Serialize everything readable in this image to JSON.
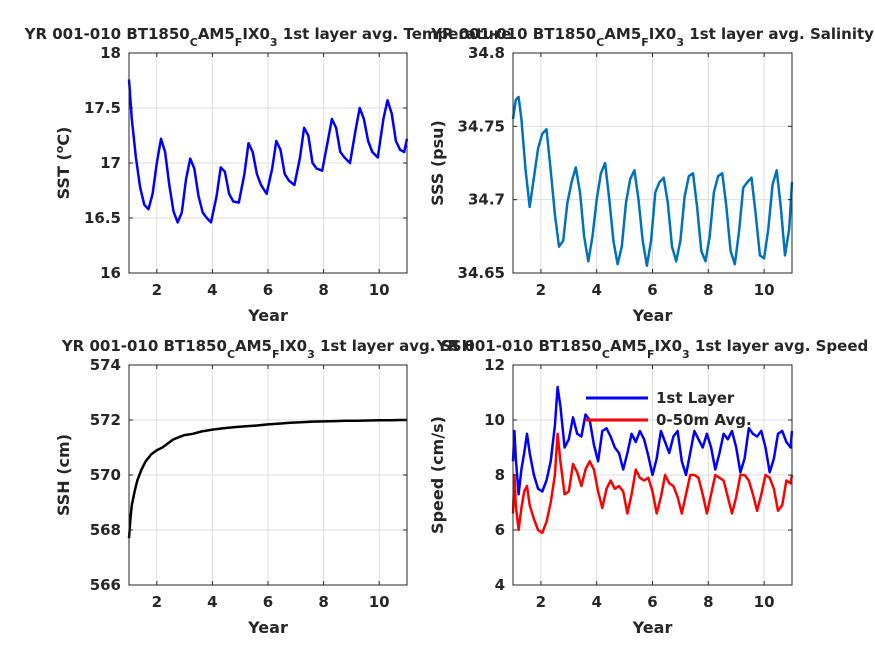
{
  "chart_data": [
    {
      "type": "line",
      "title": "YR 001-010 BT1850_CAM5_FIX0_3 1st layer avg. Temperature",
      "title_parts": {
        "a": "YR 001-010 BT1850",
        "s1": "C",
        "b": "AM5",
        "s2": "F",
        "c": "IX0",
        "s3": "3",
        "d": " 1st layer avg. Temperature"
      },
      "xlabel": "Year",
      "ylabel": "SST (",
      "ylabel_sup": "o",
      "ylabel_end": "C)",
      "xlim": [
        1,
        11
      ],
      "ylim": [
        16,
        18
      ],
      "xticks": [
        2,
        4,
        6,
        8,
        10
      ],
      "yticks": [
        16,
        16.5,
        17,
        17.5,
        18
      ],
      "ytick_labels": [
        "16",
        "16.5",
        "17",
        "17.5",
        "18"
      ],
      "grid": true,
      "series": [
        {
          "color": "#0000ff",
          "x": [
            1.0,
            1.1,
            1.25,
            1.4,
            1.55,
            1.7,
            1.85,
            2.0,
            2.15,
            2.3,
            2.45,
            2.6,
            2.75,
            2.9,
            3.05,
            3.2,
            3.35,
            3.5,
            3.65,
            3.8,
            3.95,
            4.15,
            4.3,
            4.45,
            4.6,
            4.75,
            4.95,
            5.15,
            5.3,
            5.45,
            5.6,
            5.75,
            5.95,
            6.15,
            6.3,
            6.45,
            6.6,
            6.75,
            6.95,
            7.15,
            7.3,
            7.45,
            7.6,
            7.75,
            7.95,
            8.15,
            8.3,
            8.45,
            8.6,
            8.75,
            8.95,
            9.15,
            9.3,
            9.45,
            9.6,
            9.75,
            9.95,
            10.15,
            10.3,
            10.45,
            10.6,
            10.75,
            10.9,
            11.0
          ],
          "y": [
            17.76,
            17.4,
            17.05,
            16.78,
            16.62,
            16.58,
            16.72,
            17.0,
            17.22,
            17.1,
            16.8,
            16.56,
            16.46,
            16.55,
            16.85,
            17.04,
            16.95,
            16.7,
            16.55,
            16.5,
            16.46,
            16.7,
            16.96,
            16.92,
            16.72,
            16.65,
            16.64,
            16.9,
            17.18,
            17.1,
            16.9,
            16.8,
            16.72,
            16.95,
            17.2,
            17.12,
            16.9,
            16.84,
            16.8,
            17.05,
            17.32,
            17.25,
            17.0,
            16.95,
            16.93,
            17.2,
            17.4,
            17.32,
            17.1,
            17.05,
            17.0,
            17.3,
            17.5,
            17.4,
            17.2,
            17.1,
            17.05,
            17.4,
            17.57,
            17.45,
            17.2,
            17.12,
            17.1,
            17.22
          ]
        }
      ]
    },
    {
      "type": "line",
      "title": "YR 001-010 BT1850_CAM5_FIX0_3 1st layer avg. Salinity",
      "title_parts": {
        "a": "YR 001-010 BT1850",
        "s1": "C",
        "b": "AM5",
        "s2": "F",
        "c": "IX0",
        "s3": "3",
        "d": " 1st layer avg. Salinity"
      },
      "xlabel": "Year",
      "ylabel": "SSS (psu)",
      "xlim": [
        1,
        11
      ],
      "ylim": [
        34.65,
        34.8
      ],
      "xticks": [
        2,
        4,
        6,
        8,
        10
      ],
      "yticks": [
        34.65,
        34.7,
        34.75,
        34.8
      ],
      "ytick_labels": [
        "34.65",
        "34.7",
        "34.75",
        "34.8"
      ],
      "grid": true,
      "series": [
        {
          "color": "#0072bd",
          "x": [
            1.0,
            1.1,
            1.2,
            1.3,
            1.45,
            1.6,
            1.75,
            1.9,
            2.05,
            2.2,
            2.35,
            2.5,
            2.65,
            2.8,
            2.95,
            3.1,
            3.25,
            3.4,
            3.55,
            3.7,
            3.85,
            4.0,
            4.15,
            4.3,
            4.45,
            4.6,
            4.75,
            4.9,
            5.05,
            5.2,
            5.35,
            5.5,
            5.65,
            5.8,
            5.95,
            6.1,
            6.25,
            6.4,
            6.55,
            6.7,
            6.85,
            7.0,
            7.15,
            7.3,
            7.45,
            7.6,
            7.75,
            7.9,
            8.05,
            8.2,
            8.35,
            8.5,
            8.65,
            8.8,
            8.95,
            9.1,
            9.25,
            9.4,
            9.55,
            9.7,
            9.85,
            10.0,
            10.15,
            10.3,
            10.45,
            10.6,
            10.75,
            10.9,
            11.0
          ],
          "y": [
            34.755,
            34.768,
            34.77,
            34.755,
            34.72,
            34.695,
            34.715,
            34.735,
            34.745,
            34.748,
            34.72,
            34.69,
            34.668,
            34.672,
            34.698,
            34.712,
            34.722,
            34.705,
            34.675,
            34.658,
            34.675,
            34.7,
            34.718,
            34.725,
            34.7,
            34.672,
            34.656,
            34.668,
            34.698,
            34.714,
            34.72,
            34.7,
            34.672,
            34.655,
            34.672,
            34.705,
            34.712,
            34.715,
            34.698,
            34.668,
            34.658,
            34.672,
            34.702,
            34.716,
            34.718,
            34.695,
            34.665,
            34.658,
            34.675,
            34.705,
            34.716,
            34.718,
            34.695,
            34.665,
            34.656,
            34.678,
            34.708,
            34.712,
            34.715,
            34.69,
            34.662,
            34.66,
            34.68,
            34.71,
            34.72,
            34.695,
            34.662,
            34.68,
            34.712
          ]
        }
      ]
    },
    {
      "type": "line",
      "title": "YR 001-010 BT1850_CAM5_FIX0_3 1st layer avg. SSH",
      "title_parts": {
        "a": "YR 001-010 BT1850",
        "s1": "C",
        "b": "AM5",
        "s2": "F",
        "c": "IX0",
        "s3": "3",
        "d": " 1st layer avg. SSH"
      },
      "xlabel": "Year",
      "ylabel": "SSH (cm)",
      "xlim": [
        1,
        11
      ],
      "ylim": [
        566,
        574
      ],
      "xticks": [
        2,
        4,
        6,
        8,
        10
      ],
      "yticks": [
        566,
        568,
        570,
        572,
        574
      ],
      "ytick_labels": [
        "566",
        "568",
        "570",
        "572",
        "574"
      ],
      "grid": true,
      "series": [
        {
          "color": "#000000",
          "x": [
            1.0,
            1.05,
            1.1,
            1.2,
            1.3,
            1.45,
            1.6,
            1.8,
            2.0,
            2.2,
            2.4,
            2.6,
            2.8,
            3.0,
            3.3,
            3.6,
            4.0,
            4.4,
            4.8,
            5.2,
            5.6,
            6.0,
            6.4,
            6.8,
            7.2,
            7.6,
            8.0,
            8.4,
            8.8,
            9.2,
            9.6,
            10.0,
            10.4,
            10.8,
            11.0
          ],
          "y": [
            567.7,
            568.4,
            568.9,
            569.4,
            569.8,
            570.2,
            570.5,
            570.75,
            570.9,
            571.0,
            571.15,
            571.3,
            571.38,
            571.45,
            571.5,
            571.58,
            571.65,
            571.7,
            571.74,
            571.77,
            571.8,
            571.84,
            571.87,
            571.9,
            571.92,
            571.94,
            571.95,
            571.96,
            571.97,
            571.97,
            571.98,
            571.99,
            571.99,
            572.0,
            572.0
          ]
        }
      ]
    },
    {
      "type": "line",
      "title": "YR 001-010 BT1850_CAM5_FIX0_3 1st layer avg. Speed",
      "title_parts": {
        "a": "YR 001-010 BT1850",
        "s1": "C",
        "b": "AM5",
        "s2": "F",
        "c": "IX0",
        "s3": "3",
        "d": " 1st layer avg. Speed"
      },
      "xlabel": "Year",
      "ylabel": "Speed (cm/s)",
      "xlim": [
        1,
        11
      ],
      "ylim": [
        4,
        12
      ],
      "xticks": [
        2,
        4,
        6,
        8,
        10
      ],
      "yticks": [
        4,
        6,
        8,
        10,
        12
      ],
      "ytick_labels": [
        "4",
        "6",
        "8",
        "10",
        "12"
      ],
      "grid": true,
      "legend": {
        "placement": "top-right"
      },
      "series": [
        {
          "name": "1st Layer",
          "color": "#0000ff",
          "x": [
            1.0,
            1.05,
            1.1,
            1.2,
            1.3,
            1.4,
            1.5,
            1.6,
            1.75,
            1.9,
            2.05,
            2.2,
            2.35,
            2.5,
            2.6,
            2.7,
            2.85,
            3.0,
            3.15,
            3.3,
            3.45,
            3.6,
            3.75,
            3.9,
            4.05,
            4.2,
            4.35,
            4.5,
            4.65,
            4.8,
            4.95,
            5.1,
            5.25,
            5.4,
            5.55,
            5.7,
            5.85,
            6.0,
            6.15,
            6.3,
            6.45,
            6.6,
            6.75,
            6.9,
            7.05,
            7.2,
            7.35,
            7.5,
            7.65,
            7.8,
            7.95,
            8.1,
            8.25,
            8.4,
            8.55,
            8.7,
            8.85,
            9.0,
            9.15,
            9.3,
            9.45,
            9.6,
            9.75,
            9.9,
            10.05,
            10.2,
            10.35,
            10.5,
            10.65,
            10.8,
            10.95,
            11.0
          ],
          "y": [
            8.5,
            9.6,
            8.6,
            7.3,
            8.2,
            8.8,
            9.5,
            8.8,
            8.0,
            7.5,
            7.4,
            7.8,
            8.5,
            9.8,
            11.2,
            10.5,
            9.0,
            9.3,
            10.1,
            9.5,
            9.4,
            10.2,
            10.0,
            9.1,
            8.5,
            9.6,
            9.7,
            9.4,
            9.0,
            8.8,
            8.2,
            8.8,
            9.5,
            9.2,
            9.6,
            9.3,
            8.7,
            8.0,
            8.6,
            9.6,
            9.2,
            8.8,
            9.4,
            9.6,
            8.5,
            8.0,
            8.8,
            9.6,
            9.3,
            9.0,
            9.5,
            9.0,
            8.2,
            8.8,
            9.5,
            9.3,
            9.6,
            9.0,
            8.1,
            8.6,
            9.7,
            9.5,
            9.4,
            9.6,
            9.0,
            8.1,
            8.6,
            9.5,
            9.6,
            9.2,
            9.0,
            9.6
          ]
        },
        {
          "name": "0-50m Avg.",
          "color": "#ff0000",
          "x": [
            1.0,
            1.05,
            1.1,
            1.2,
            1.3,
            1.4,
            1.5,
            1.6,
            1.75,
            1.9,
            2.05,
            2.2,
            2.35,
            2.5,
            2.6,
            2.7,
            2.85,
            3.0,
            3.15,
            3.3,
            3.45,
            3.6,
            3.75,
            3.9,
            4.05,
            4.2,
            4.35,
            4.5,
            4.65,
            4.8,
            4.95,
            5.1,
            5.25,
            5.4,
            5.55,
            5.7,
            5.85,
            6.0,
            6.15,
            6.3,
            6.45,
            6.6,
            6.75,
            6.9,
            7.05,
            7.2,
            7.35,
            7.5,
            7.65,
            7.8,
            7.95,
            8.1,
            8.25,
            8.4,
            8.55,
            8.7,
            8.85,
            9.0,
            9.15,
            9.3,
            9.45,
            9.6,
            9.75,
            9.9,
            10.05,
            10.2,
            10.35,
            10.5,
            10.65,
            10.8,
            10.95,
            11.0
          ],
          "y": [
            6.6,
            8.0,
            6.9,
            6.0,
            6.8,
            7.4,
            7.6,
            6.9,
            6.4,
            6.0,
            5.9,
            6.3,
            7.0,
            8.0,
            9.5,
            8.5,
            7.3,
            7.4,
            8.4,
            8.1,
            7.6,
            8.2,
            8.5,
            8.2,
            7.4,
            6.8,
            7.5,
            7.8,
            7.5,
            7.6,
            7.4,
            6.6,
            7.3,
            8.2,
            7.9,
            7.8,
            7.9,
            7.4,
            6.6,
            7.2,
            8.0,
            7.7,
            7.6,
            7.2,
            6.6,
            7.3,
            8.0,
            8.0,
            7.9,
            7.3,
            6.6,
            7.3,
            8.0,
            7.9,
            7.8,
            7.2,
            6.6,
            7.2,
            8.0,
            8.0,
            7.8,
            7.3,
            6.7,
            7.3,
            8.0,
            7.9,
            7.5,
            6.7,
            6.9,
            7.8,
            7.7,
            8.0
          ]
        }
      ]
    }
  ]
}
